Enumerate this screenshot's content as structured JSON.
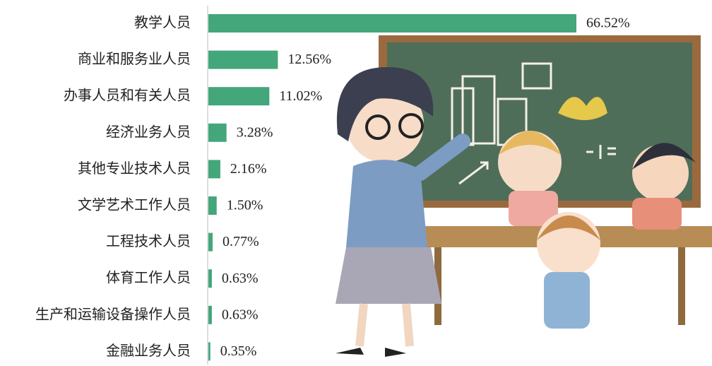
{
  "chart_data": {
    "type": "bar",
    "orientation": "horizontal",
    "categories": [
      "教学人员",
      "商业和服务业人员",
      "办事人员和有关人员",
      "经济业务人员",
      "其他专业技术人员",
      "文学艺术工作人员",
      "工程技术人员",
      "体育工作人员",
      "生产和运输设备操作人员",
      "金融业务人员"
    ],
    "values": [
      66.52,
      12.56,
      11.02,
      3.28,
      2.16,
      1.5,
      0.77,
      0.63,
      0.63,
      0.35
    ],
    "value_labels": [
      "66.52%",
      "12.56%",
      "11.02%",
      "3.28%",
      "2.16%",
      "1.50%",
      "0.77%",
      "0.63%",
      "0.63%",
      "0.35%"
    ],
    "color": "#44a67b"
  }
}
